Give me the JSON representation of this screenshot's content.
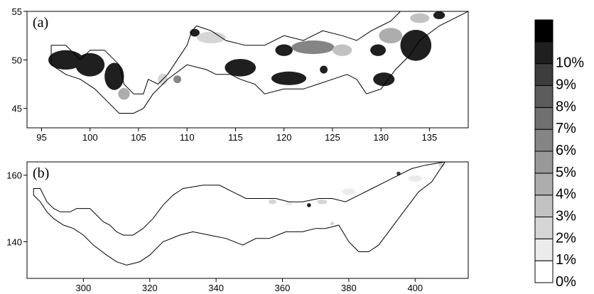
{
  "chart_data": [
    {
      "type": "heatmap",
      "panel_label": "(a)",
      "xlim": [
        93.5,
        139
      ],
      "ylim": [
        43,
        55
      ],
      "x_ticks": [
        95,
        100,
        105,
        110,
        115,
        120,
        125,
        130,
        135
      ],
      "y_ticks": [
        45,
        50,
        55
      ],
      "outline": [
        [
          96,
          51.5
        ],
        [
          97.5,
          51.5
        ],
        [
          99,
          50
        ],
        [
          100,
          51
        ],
        [
          101.5,
          51
        ],
        [
          103,
          49.5
        ],
        [
          103.5,
          47.5
        ],
        [
          104.5,
          46.5
        ],
        [
          105.5,
          46.5
        ],
        [
          106,
          48
        ],
        [
          107,
          47.5
        ],
        [
          108,
          48.5
        ],
        [
          109,
          50
        ],
        [
          110,
          51.5
        ],
        [
          110.5,
          53
        ],
        [
          111,
          53.5
        ],
        [
          112.5,
          53
        ],
        [
          114,
          52
        ],
        [
          116,
          51.5
        ],
        [
          118,
          51.5
        ],
        [
          120,
          52.5
        ],
        [
          122,
          52
        ],
        [
          124,
          53
        ],
        [
          126,
          52.5
        ],
        [
          127.5,
          52
        ],
        [
          129,
          53
        ],
        [
          130,
          53.5
        ],
        [
          131,
          54
        ],
        [
          132,
          55
        ],
        [
          139,
          55
        ],
        [
          136,
          53.5
        ],
        [
          134,
          52
        ],
        [
          133,
          50.5
        ],
        [
          131.5,
          49
        ],
        [
          130,
          47
        ],
        [
          128.5,
          46.5
        ],
        [
          127.5,
          48
        ],
        [
          126.5,
          48.5
        ],
        [
          125,
          48
        ],
        [
          123.5,
          47.5
        ],
        [
          122,
          47
        ],
        [
          120,
          47
        ],
        [
          118,
          46.5
        ],
        [
          117,
          47.5
        ],
        [
          115.5,
          48
        ],
        [
          114.5,
          48.5
        ],
        [
          113,
          48.5
        ],
        [
          112,
          49
        ],
        [
          110,
          49.5
        ],
        [
          108,
          48
        ],
        [
          106.5,
          46.5
        ],
        [
          105.5,
          45
        ],
        [
          104.5,
          44.5
        ],
        [
          103,
          44.5
        ],
        [
          102,
          45.5
        ],
        [
          100.5,
          47
        ],
        [
          99,
          48
        ],
        [
          97.5,
          48.5
        ],
        [
          96,
          49.5
        ]
      ],
      "cells": [
        {
          "x": 97.5,
          "y": 50,
          "value": 10,
          "rx": 1.8,
          "ry": 1.0
        },
        {
          "x": 100,
          "y": 49.5,
          "value": 10,
          "rx": 1.5,
          "ry": 1.2
        },
        {
          "x": 102.5,
          "y": 48.3,
          "value": 10,
          "rx": 1.0,
          "ry": 1.4
        },
        {
          "x": 103.5,
          "y": 46.5,
          "value": 4,
          "rx": 0.6,
          "ry": 0.6
        },
        {
          "x": 107.5,
          "y": 48,
          "value": 2,
          "rx": 0.5,
          "ry": 0.6
        },
        {
          "x": 109,
          "y": 48,
          "value": 6,
          "rx": 0.4,
          "ry": 0.4
        },
        {
          "x": 110.8,
          "y": 52.8,
          "value": 10,
          "rx": 0.5,
          "ry": 0.4
        },
        {
          "x": 112.5,
          "y": 52.3,
          "value": 2,
          "rx": 1.5,
          "ry": 0.6
        },
        {
          "x": 115.5,
          "y": 49.2,
          "value": 10,
          "rx": 1.6,
          "ry": 0.9
        },
        {
          "x": 120.5,
          "y": 48.1,
          "value": 10,
          "rx": 1.8,
          "ry": 0.7
        },
        {
          "x": 120,
          "y": 51,
          "value": 10,
          "rx": 0.9,
          "ry": 0.6
        },
        {
          "x": 123,
          "y": 51.3,
          "value": 6,
          "rx": 2.2,
          "ry": 0.7
        },
        {
          "x": 124.1,
          "y": 49,
          "value": 10,
          "rx": 0.4,
          "ry": 0.4
        },
        {
          "x": 126,
          "y": 51,
          "value": 3,
          "rx": 1.0,
          "ry": 0.6
        },
        {
          "x": 129.7,
          "y": 51,
          "value": 10,
          "rx": 0.8,
          "ry": 0.6
        },
        {
          "x": 130.3,
          "y": 48,
          "value": 10,
          "rx": 1.1,
          "ry": 0.7
        },
        {
          "x": 133.6,
          "y": 51.5,
          "value": 10,
          "rx": 1.6,
          "ry": 1.6
        },
        {
          "x": 131,
          "y": 52.5,
          "value": 4,
          "rx": 1.2,
          "ry": 0.8
        },
        {
          "x": 136,
          "y": 54.6,
          "value": 10,
          "rx": 0.6,
          "ry": 0.4
        },
        {
          "x": 134,
          "y": 54.3,
          "value": 3,
          "rx": 1.0,
          "ry": 0.5
        }
      ]
    },
    {
      "type": "heatmap",
      "panel_label": "(b)",
      "xlim": [
        283,
        416
      ],
      "ylim": [
        129,
        164
      ],
      "x_ticks": [
        300,
        320,
        340,
        360,
        380,
        400
      ],
      "y_ticks": [
        140,
        160
      ],
      "outline": [
        [
          285,
          156
        ],
        [
          287,
          156
        ],
        [
          289,
          152
        ],
        [
          291,
          150
        ],
        [
          293,
          149
        ],
        [
          296,
          149
        ],
        [
          298,
          150
        ],
        [
          302,
          150
        ],
        [
          304,
          148
        ],
        [
          306,
          146
        ],
        [
          308,
          145
        ],
        [
          310,
          143
        ],
        [
          312,
          142
        ],
        [
          315,
          142
        ],
        [
          318,
          144
        ],
        [
          321,
          147
        ],
        [
          324,
          151
        ],
        [
          327,
          154
        ],
        [
          330,
          156
        ],
        [
          336,
          157
        ],
        [
          341,
          157
        ],
        [
          345,
          155
        ],
        [
          349,
          153
        ],
        [
          354,
          153
        ],
        [
          358,
          153
        ],
        [
          362,
          152
        ],
        [
          366,
          152
        ],
        [
          371,
          153
        ],
        [
          375,
          153
        ],
        [
          379,
          152
        ],
        [
          383,
          154
        ],
        [
          387,
          156
        ],
        [
          391,
          158
        ],
        [
          395,
          160
        ],
        [
          399,
          162
        ],
        [
          403,
          163
        ],
        [
          409,
          164
        ],
        [
          405,
          158
        ],
        [
          401,
          155
        ],
        [
          398,
          151
        ],
        [
          395,
          147
        ],
        [
          392,
          143
        ],
        [
          389,
          139
        ],
        [
          386,
          137
        ],
        [
          383,
          137
        ],
        [
          380,
          140
        ],
        [
          377,
          145
        ],
        [
          373,
          144
        ],
        [
          370,
          144
        ],
        [
          366,
          143
        ],
        [
          361,
          143
        ],
        [
          356,
          141
        ],
        [
          352,
          141
        ],
        [
          348,
          139
        ],
        [
          343,
          141
        ],
        [
          338,
          142
        ],
        [
          333,
          143
        ],
        [
          329,
          142
        ],
        [
          324,
          140
        ],
        [
          320,
          136
        ],
        [
          317,
          134
        ],
        [
          313,
          133
        ],
        [
          310,
          134
        ],
        [
          307,
          136
        ],
        [
          303,
          139
        ],
        [
          300,
          142
        ],
        [
          297,
          144
        ],
        [
          294,
          145
        ],
        [
          291,
          147
        ],
        [
          289,
          149
        ],
        [
          287,
          152
        ],
        [
          285,
          154
        ]
      ],
      "cells": [
        {
          "x": 395,
          "y": 160.5,
          "value": 9,
          "rx": 0.6,
          "ry": 0.6
        },
        {
          "x": 368,
          "y": 151,
          "value": 10,
          "rx": 0.6,
          "ry": 0.6
        },
        {
          "x": 357,
          "y": 152,
          "value": 2,
          "rx": 1.2,
          "ry": 0.7
        },
        {
          "x": 372,
          "y": 152,
          "value": 2,
          "rx": 1.5,
          "ry": 0.7
        },
        {
          "x": 380,
          "y": 155,
          "value": 1,
          "rx": 2.0,
          "ry": 1.0
        },
        {
          "x": 400,
          "y": 159,
          "value": 1,
          "rx": 2.0,
          "ry": 1.0
        },
        {
          "x": 408,
          "y": 163,
          "value": 2,
          "rx": 1.0,
          "ry": 0.6
        },
        {
          "x": 375,
          "y": 145.5,
          "value": 2,
          "rx": 0.6,
          "ry": 0.5
        },
        {
          "x": 362,
          "y": 151.5,
          "value": 1,
          "rx": 1.0,
          "ry": 0.6
        }
      ]
    }
  ],
  "colorbar": {
    "levels": [
      {
        "label": "0%",
        "color": "#ffffff"
      },
      {
        "label": "1%",
        "color": "#ebebeb"
      },
      {
        "label": "2%",
        "color": "#d6d6d6"
      },
      {
        "label": "3%",
        "color": "#c2c2c2"
      },
      {
        "label": "4%",
        "color": "#adadad"
      },
      {
        "label": "5%",
        "color": "#999999"
      },
      {
        "label": "6%",
        "color": "#858585"
      },
      {
        "label": "7%",
        "color": "#707070"
      },
      {
        "label": "8%",
        "color": "#5c5c5c"
      },
      {
        "label": "9%",
        "color": "#3d3d3d"
      },
      {
        "label": "10%",
        "color": "#1f1f1f"
      }
    ],
    "over_color": "#000000"
  }
}
